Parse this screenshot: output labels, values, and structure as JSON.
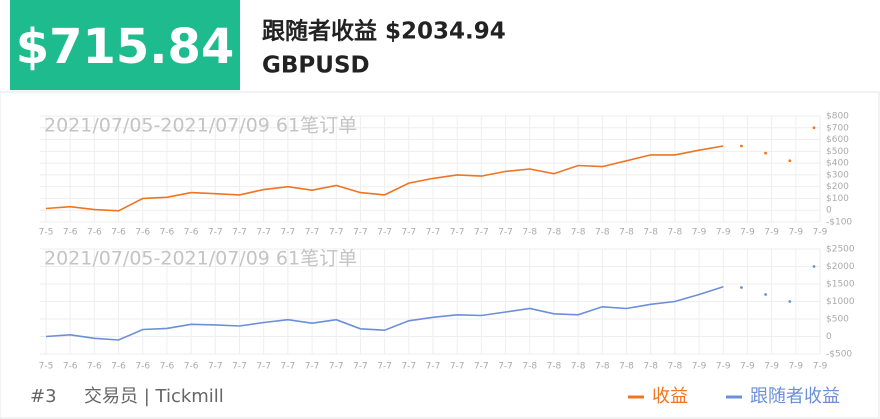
{
  "header": {
    "profit": "$715.84",
    "follower_profit": "跟随者收益 $2034.94",
    "symbol": "GBPUSD"
  },
  "footer": {
    "rank": "#3",
    "trader": "交易员 | Tickmill"
  },
  "chart_data": [
    {
      "type": "line",
      "title": "2021/07/05-2021/07/09 61笔订单",
      "categories": [
        "7-5",
        "7-6",
        "7-6",
        "7-6",
        "7-6",
        "7-6",
        "7-6",
        "7-7",
        "7-7",
        "7-7",
        "7-7",
        "7-7",
        "7-7",
        "7-7",
        "7-7",
        "7-7",
        "7-7",
        "7-7",
        "7-7",
        "7-7",
        "7-8",
        "7-8",
        "7-8",
        "7-8",
        "7-8",
        "7-8",
        "7-8",
        "7-9",
        "7-9",
        "7-9",
        "7-9",
        "7-9",
        "7-9"
      ],
      "series": [
        {
          "name": "收益",
          "color": "#f07421",
          "values": [
            15,
            30,
            5,
            -5,
            100,
            110,
            150,
            140,
            130,
            175,
            200,
            170,
            210,
            150,
            130,
            230,
            270,
            300,
            290,
            330,
            350,
            310,
            380,
            370,
            420,
            470,
            470,
            510,
            545,
            null,
            null,
            null,
            null
          ]
        }
      ],
      "dots": {
        "color": "#f07421",
        "values": [
          null,
          null,
          null,
          null,
          null,
          null,
          null,
          null,
          null,
          null,
          null,
          null,
          null,
          null,
          null,
          null,
          null,
          null,
          null,
          null,
          null,
          null,
          null,
          null,
          null,
          null,
          null,
          null,
          null,
          545,
          485,
          420,
          700
        ]
      },
      "ylim": [
        -100,
        800
      ],
      "yticks": [
        {
          "value": -100,
          "label": "-$100"
        },
        0,
        {
          "value": 100,
          "label": "$100"
        },
        {
          "value": 200,
          "label": "$200"
        },
        {
          "value": 300,
          "label": "$300"
        },
        {
          "value": 400,
          "label": "$400"
        },
        {
          "value": 500,
          "label": "$500"
        },
        {
          "value": 600,
          "label": "$600"
        },
        {
          "value": 700,
          "label": "$700"
        },
        {
          "value": 800,
          "label": "$800"
        }
      ],
      "grid": true
    },
    {
      "type": "line",
      "title": "2021/07/05-2021/07/09 61笔订单",
      "categories": [
        "7-5",
        "7-6",
        "7-6",
        "7-6",
        "7-6",
        "7-6",
        "7-6",
        "7-7",
        "7-7",
        "7-7",
        "7-7",
        "7-7",
        "7-7",
        "7-7",
        "7-7",
        "7-7",
        "7-7",
        "7-7",
        "7-7",
        "7-7",
        "7-8",
        "7-8",
        "7-8",
        "7-8",
        "7-8",
        "7-8",
        "7-8",
        "7-9",
        "7-9",
        "7-9",
        "7-9",
        "7-9",
        "7-9"
      ],
      "series": [
        {
          "name": "跟随者收益",
          "color": "#6b8fd9",
          "values": [
            0,
            50,
            -50,
            -100,
            200,
            230,
            350,
            330,
            300,
            400,
            480,
            380,
            480,
            220,
            180,
            450,
            550,
            620,
            600,
            700,
            800,
            650,
            620,
            850,
            800,
            920,
            1000,
            1200,
            1420,
            null,
            null,
            null,
            null
          ]
        }
      ],
      "dots": {
        "color": "#6b8fd9",
        "values": [
          null,
          null,
          null,
          null,
          null,
          null,
          null,
          null,
          null,
          null,
          null,
          null,
          null,
          null,
          null,
          null,
          null,
          null,
          null,
          null,
          null,
          null,
          null,
          null,
          null,
          null,
          null,
          null,
          null,
          1400,
          1200,
          1000,
          2000
        ]
      },
      "ylim": [
        -500,
        2500
      ],
      "yticks": [
        {
          "value": -500,
          "label": "-$500"
        },
        0,
        {
          "value": 500,
          "label": "$500"
        },
        {
          "value": 1000,
          "label": "$1000"
        },
        {
          "value": 1500,
          "label": "$1500"
        },
        {
          "value": 2000,
          "label": "$2000"
        },
        {
          "value": 2500,
          "label": "$2500"
        }
      ],
      "grid": true
    }
  ]
}
